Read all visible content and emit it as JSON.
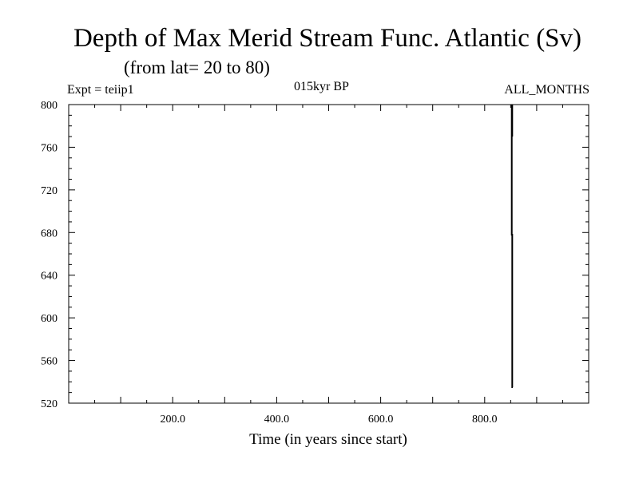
{
  "header": {
    "title": "Depth of Max Merid Stream Func. Atlantic (Sv)",
    "subtitle": "(from lat= 20 to 80)",
    "experiment": "Expt = teiip1",
    "period": "015kyr BP",
    "months": "ALL_MONTHS"
  },
  "chart_data": {
    "type": "line",
    "title": "Depth of Max Merid Stream Func. Atlantic (Sv)",
    "xlabel": "Time (in years since start)",
    "ylabel": "",
    "xlim": [
      0,
      1000
    ],
    "ylim": [
      520,
      800
    ],
    "x_ticks": [
      200,
      400,
      600,
      800
    ],
    "x_tick_labels": [
      "200.0",
      "400.0",
      "600.0",
      "800.0"
    ],
    "y_ticks": [
      520,
      560,
      600,
      640,
      680,
      720,
      760,
      800
    ],
    "y_tick_labels": [
      "520",
      "560",
      "600",
      "640",
      "680",
      "720",
      "760",
      "800"
    ],
    "grid": false,
    "series": [
      {
        "color": "#000000",
        "x": [
          852,
          852,
          853,
          853,
          854
        ],
        "y": [
          800,
          678,
          678,
          535,
          535
        ]
      },
      {
        "color": "#000000",
        "x": [
          853,
          853
        ],
        "y": [
          800,
          770
        ]
      }
    ]
  }
}
